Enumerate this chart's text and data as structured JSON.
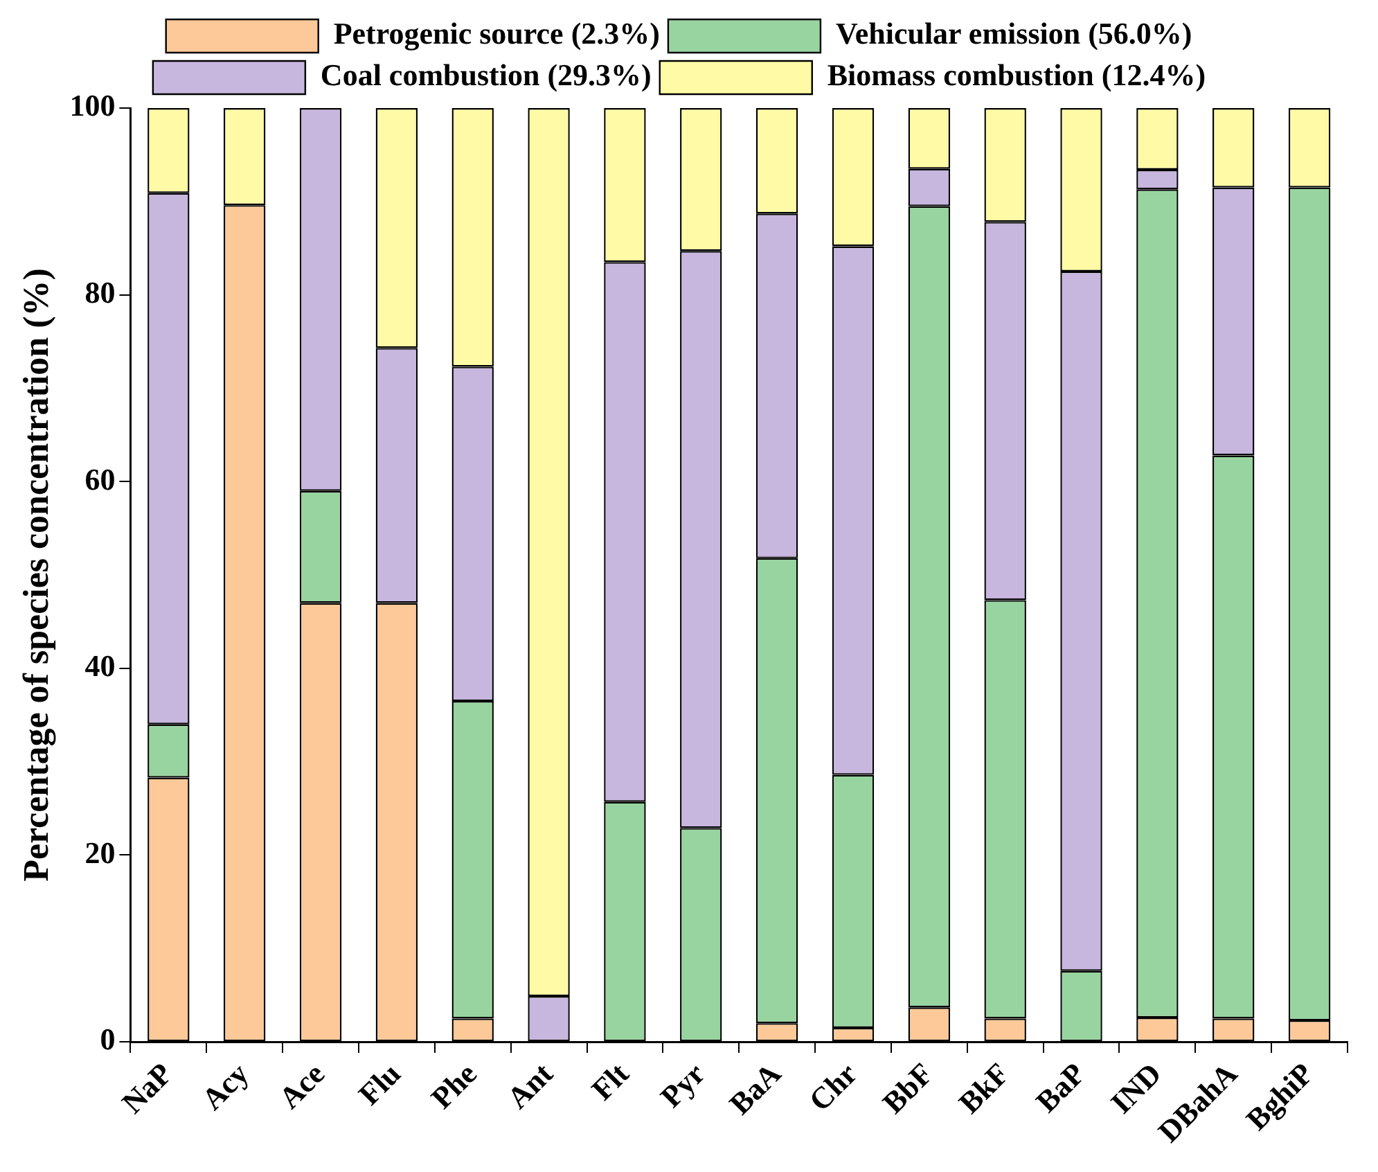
{
  "chart_data": {
    "type": "bar",
    "stacked": true,
    "ylabel": "Percentage of species concentration (%)",
    "categories": [
      "NaP",
      "Acy",
      "Ace",
      "Flu",
      "Phe",
      "Ant",
      "Flt",
      "Pyr",
      "BaA",
      "Chr",
      "BbF",
      "BkF",
      "BaP",
      "IND",
      "DBahA",
      "BghiP"
    ],
    "series": [
      {
        "name": "Petrogenic source (2.3%)",
        "color": "#fdc998",
        "values": [
          28.3,
          89.6,
          47.0,
          47.0,
          2.5,
          0,
          0,
          0,
          2.0,
          1.5,
          3.7,
          2.5,
          0,
          2.6,
          2.5,
          2.3
        ]
      },
      {
        "name": "Vehicular emission (56.0%)",
        "color": "#98d4a0",
        "values": [
          5.7,
          0,
          12.0,
          0,
          34.0,
          0,
          25.7,
          22.9,
          49.8,
          27.1,
          85.8,
          44.8,
          7.6,
          88.7,
          60.3,
          89.2
        ]
      },
      {
        "name": "Coal combustion (29.3%)",
        "color": "#c7b6dd",
        "values": [
          56.9,
          0,
          41.0,
          27.3,
          35.8,
          4.9,
          57.8,
          61.8,
          36.9,
          56.6,
          4.0,
          40.5,
          74.9,
          2.1,
          28.7,
          0
        ]
      },
      {
        "name": "Biomass combustion (12.4%)",
        "color": "#fffaa5",
        "values": [
          9.1,
          10.4,
          0,
          25.7,
          27.7,
          95.1,
          16.5,
          15.3,
          11.3,
          14.8,
          6.5,
          12.2,
          17.5,
          6.6,
          8.5,
          8.5
        ]
      }
    ],
    "ylim": [
      0,
      100
    ],
    "yticks": [
      0,
      20,
      40,
      60,
      80,
      100
    ],
    "grid": false,
    "legend": "top"
  }
}
